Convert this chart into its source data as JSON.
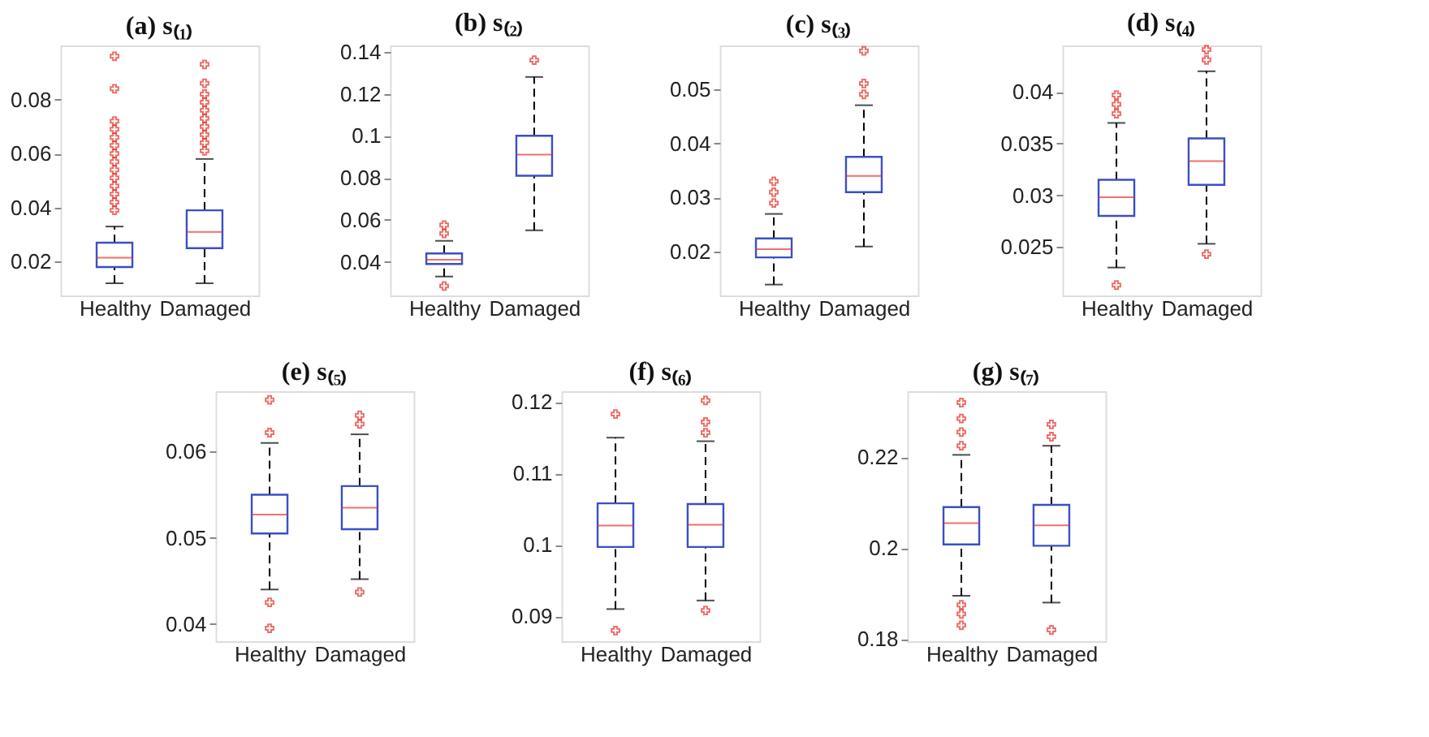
{
  "chart_data": [
    {
      "type": "box",
      "title": "(a) s₍₁₎",
      "categories": [
        "Healthy",
        "Damaged"
      ],
      "ylim": [
        0.0075,
        0.1
      ],
      "yticks": [
        0.02,
        0.04,
        0.06,
        0.08
      ],
      "grid": false,
      "series": [
        {
          "color": "#3b4fc4",
          "boxes": [
            {
              "low": 0.012,
              "q1": 0.018,
              "median": 0.0215,
              "q3": 0.027,
              "high": 0.033,
              "outliers": [
                0.039,
                0.042,
                0.045,
                0.048,
                0.051,
                0.054,
                0.057,
                0.06,
                0.063,
                0.066,
                0.069,
                0.072,
                0.084,
                0.096
              ]
            },
            {
              "low": 0.012,
              "q1": 0.025,
              "median": 0.031,
              "q3": 0.039,
              "high": 0.058,
              "outliers": [
                0.061,
                0.064,
                0.067,
                0.07,
                0.073,
                0.076,
                0.079,
                0.082,
                0.086,
                0.093
              ]
            }
          ]
        }
      ]
    },
    {
      "type": "box",
      "title": "(b) s₍₂₎",
      "categories": [
        "Healthy",
        "Damaged"
      ],
      "ylim": [
        0.024,
        0.143
      ],
      "yticks": [
        0.04,
        0.06,
        0.08,
        0.1,
        0.12,
        0.14
      ],
      "grid": false,
      "series": [
        {
          "color": "#3b4fc4",
          "boxes": [
            {
              "low": 0.033,
              "q1": 0.039,
              "median": 0.041,
              "q3": 0.044,
              "high": 0.05,
              "outliers": [
                0.0285,
                0.0535,
                0.0575
              ]
            },
            {
              "low": 0.055,
              "q1": 0.081,
              "median": 0.091,
              "q3": 0.1,
              "high": 0.128,
              "outliers": [
                0.136
              ]
            }
          ]
        }
      ]
    },
    {
      "type": "box",
      "title": "(c) s₍₃₎",
      "categories": [
        "Healthy",
        "Damaged"
      ],
      "ylim": [
        0.012,
        0.058
      ],
      "yticks": [
        0.02,
        0.03,
        0.04,
        0.05
      ],
      "grid": false,
      "series": [
        {
          "color": "#3b4fc4",
          "boxes": [
            {
              "low": 0.014,
              "q1": 0.019,
              "median": 0.0205,
              "q3": 0.0225,
              "high": 0.027,
              "outliers": [
                0.029,
                0.031,
                0.033
              ]
            },
            {
              "low": 0.021,
              "q1": 0.031,
              "median": 0.034,
              "q3": 0.0375,
              "high": 0.047,
              "outliers": [
                0.049,
                0.051,
                0.057
              ]
            }
          ]
        }
      ]
    },
    {
      "type": "box",
      "title": "(d) s₍₄₎",
      "categories": [
        "Healthy",
        "Damaged"
      ],
      "ylim": [
        0.0203,
        0.0445
      ],
      "yticks": [
        {
          "value": 0.025,
          "label": "0.025"
        },
        {
          "value": 0.03,
          "label": "0.03"
        },
        {
          "value": 0.035,
          "label": "0.035"
        },
        {
          "value": 0.04,
          "label": "0.04"
        }
      ],
      "grid": false,
      "series": [
        {
          "color": "#3b4fc4",
          "boxes": [
            {
              "low": 0.023,
              "q1": 0.028,
              "median": 0.0298,
              "q3": 0.0315,
              "high": 0.037,
              "outliers": [
                0.0213,
                0.0379,
                0.0388,
                0.0397
              ]
            },
            {
              "low": 0.0253,
              "q1": 0.031,
              "median": 0.0333,
              "q3": 0.0355,
              "high": 0.042,
              "outliers": [
                0.0243,
                0.0431,
                0.0441
              ]
            }
          ]
        }
      ]
    },
    {
      "type": "box",
      "title": "(e) s₍₅₎",
      "categories": [
        "Healthy",
        "Damaged"
      ],
      "ylim": [
        0.038,
        0.067
      ],
      "yticks": [
        0.04,
        0.05,
        0.06
      ],
      "grid": false,
      "series": [
        {
          "color": "#3b4fc4",
          "boxes": [
            {
              "low": 0.044,
              "q1": 0.0505,
              "median": 0.0527,
              "q3": 0.055,
              "high": 0.061,
              "outliers": [
                0.0395,
                0.0425,
                0.0622,
                0.066
              ]
            },
            {
              "low": 0.0452,
              "q1": 0.051,
              "median": 0.0535,
              "q3": 0.056,
              "high": 0.062,
              "outliers": [
                0.0437,
                0.0632,
                0.0642
              ]
            }
          ]
        }
      ]
    },
    {
      "type": "box",
      "title": "(f) s₍₆₎",
      "categories": [
        "Healthy",
        "Damaged"
      ],
      "ylim": [
        0.0865,
        0.1215
      ],
      "yticks": [
        0.09,
        {
          "value": 0.1,
          "label": "0.1"
        },
        0.11,
        0.12
      ],
      "grid": false,
      "series": [
        {
          "color": "#3b4fc4",
          "boxes": [
            {
              "low": 0.091,
              "q1": 0.0997,
              "median": 0.1027,
              "q3": 0.1058,
              "high": 0.115,
              "outliers": [
                0.088,
                0.1183
              ]
            },
            {
              "low": 0.0922,
              "q1": 0.0997,
              "median": 0.1028,
              "q3": 0.1057,
              "high": 0.1145,
              "outliers": [
                0.0908,
                0.1157,
                0.1172,
                0.1202
              ]
            }
          ]
        }
      ]
    },
    {
      "type": "box",
      "title": "(g) s₍₇₎",
      "categories": [
        "Healthy",
        "Damaged"
      ],
      "ylim": [
        0.1795,
        0.2345
      ],
      "yticks": [
        0.18,
        {
          "value": 0.2,
          "label": "0.2"
        },
        0.22
      ],
      "grid": false,
      "series": [
        {
          "color": "#3b4fc4",
          "boxes": [
            {
              "low": 0.1895,
              "q1": 0.2008,
              "median": 0.2055,
              "q3": 0.209,
              "high": 0.2205,
              "outliers": [
                0.183,
                0.1855,
                0.1875,
                0.2225,
                0.2255,
                0.2285,
                0.232
              ]
            },
            {
              "low": 0.188,
              "q1": 0.2005,
              "median": 0.205,
              "q3": 0.2095,
              "high": 0.2225,
              "outliers": [
                0.182,
                0.2245,
                0.2272
              ]
            }
          ]
        }
      ]
    }
  ]
}
